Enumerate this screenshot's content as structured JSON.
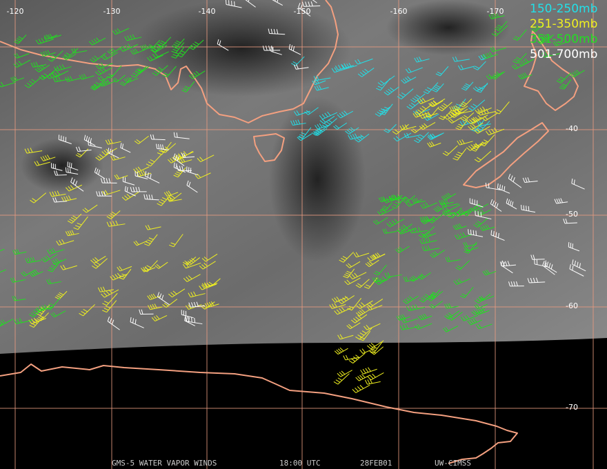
{
  "map": {
    "longitude_labels": [
      -120,
      -130,
      -140,
      -150,
      -160,
      -170
    ],
    "latitude_labels": [
      -40,
      -50,
      -60,
      -70
    ],
    "legend": [
      {
        "label": "150-250mb",
        "color": "#22e0e8"
      },
      {
        "label": "251-350mb",
        "color": "#f0f020"
      },
      {
        "label": "351-500mb",
        "color": "#20e020"
      },
      {
        "label": "501-700mb",
        "color": "#ffffff"
      }
    ],
    "caption": [
      "GMS-5 WATER VAPOR WINDS",
      "18:00 UTC",
      "28FEB01",
      "UW-CIMSS"
    ]
  }
}
